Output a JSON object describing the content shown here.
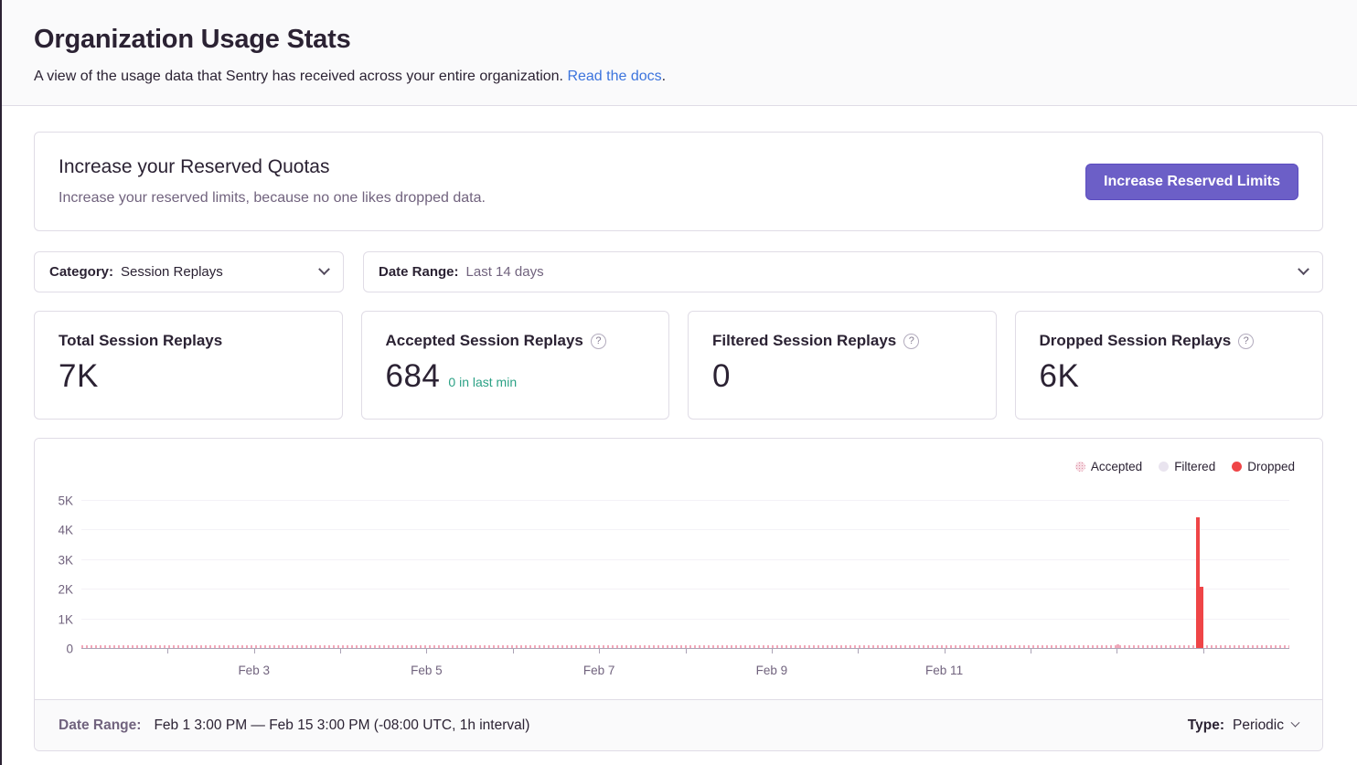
{
  "colors": {
    "accent_purple": "#6c5fc7",
    "link_blue": "#3c74dd",
    "accepted_green": "#2ba185",
    "dropped_red": "#ef4547",
    "accepted_pink": "#efa9bb",
    "filtered_gray": "#e9e4ef",
    "text_dark": "#2b2233",
    "text_muted": "#71637e",
    "card_border": "#e0dce6",
    "header_bg": "#fafafb"
  },
  "header": {
    "title": "Organization Usage Stats",
    "subtitle": "A view of the usage data that Sentry has received across your entire organization. ",
    "docs_link": "Read the docs",
    "after_link": "."
  },
  "quota_card": {
    "title": "Increase your Reserved Quotas",
    "description": "Increase your reserved limits, because no one likes dropped data.",
    "button_label": "Increase Reserved Limits"
  },
  "filters": {
    "category": {
      "label": "Category:",
      "value": "Session Replays"
    },
    "date_range": {
      "label": "Date Range:",
      "value": "Last 14 days"
    }
  },
  "stat_cards": [
    {
      "title": "Total Session Replays",
      "value": "7K",
      "has_help": false,
      "sub": ""
    },
    {
      "title": "Accepted Session Replays",
      "value": "684",
      "has_help": true,
      "sub": "0 in last min"
    },
    {
      "title": "Filtered Session Replays",
      "value": "0",
      "has_help": true,
      "sub": ""
    },
    {
      "title": "Dropped Session Replays",
      "value": "6K",
      "has_help": true,
      "sub": ""
    }
  ],
  "chart_data": {
    "type": "bar",
    "title": "",
    "xlabel": "",
    "ylabel": "",
    "ylim": [
      0,
      5500
    ],
    "grid": true,
    "legend_position": "top-right",
    "y_axis": {
      "ticks": [
        "0",
        "1K",
        "2K",
        "3K",
        "4K",
        "5K"
      ],
      "units_per_tick": 1000
    },
    "x_axis": {
      "start": "Feb 1 3:00 PM",
      "end": "Feb 15 3:00 PM",
      "total_days": 14,
      "total_hours": 336,
      "interval": "1h",
      "labels": [
        {
          "text": "Feb 3",
          "day": 2
        },
        {
          "text": "Feb 5",
          "day": 4
        },
        {
          "text": "Feb 7",
          "day": 6
        },
        {
          "text": "Feb 9",
          "day": 8
        },
        {
          "text": "Feb 11",
          "day": 10
        }
      ],
      "minor_tick_days": [
        1,
        2,
        3,
        4,
        5,
        6,
        7,
        8,
        9,
        10,
        11,
        12,
        13
      ]
    },
    "series": [
      {
        "name": "Accepted",
        "color": "#efa9bb",
        "pattern": "dotted",
        "total": 684,
        "baseline_note": "tiny hourly bars hugging the zero line across the entire range",
        "points": [
          {
            "hour": 288,
            "value": 120
          }
        ]
      },
      {
        "name": "Filtered",
        "color": "#e9e4ef",
        "pattern": "solid",
        "total": 0,
        "points": []
      },
      {
        "name": "Dropped",
        "color": "#ef4547",
        "pattern": "solid",
        "total": 6000,
        "points": [
          {
            "hour": 310,
            "value": 4400
          },
          {
            "hour": 311,
            "value": 2050
          }
        ]
      }
    ]
  },
  "chart_footer": {
    "date_range_label": "Date Range:",
    "date_range_value": "Feb 1 3:00 PM — Feb 15 3:00 PM (-08:00 UTC, 1h interval)",
    "type_label": "Type:",
    "type_value": "Periodic"
  }
}
